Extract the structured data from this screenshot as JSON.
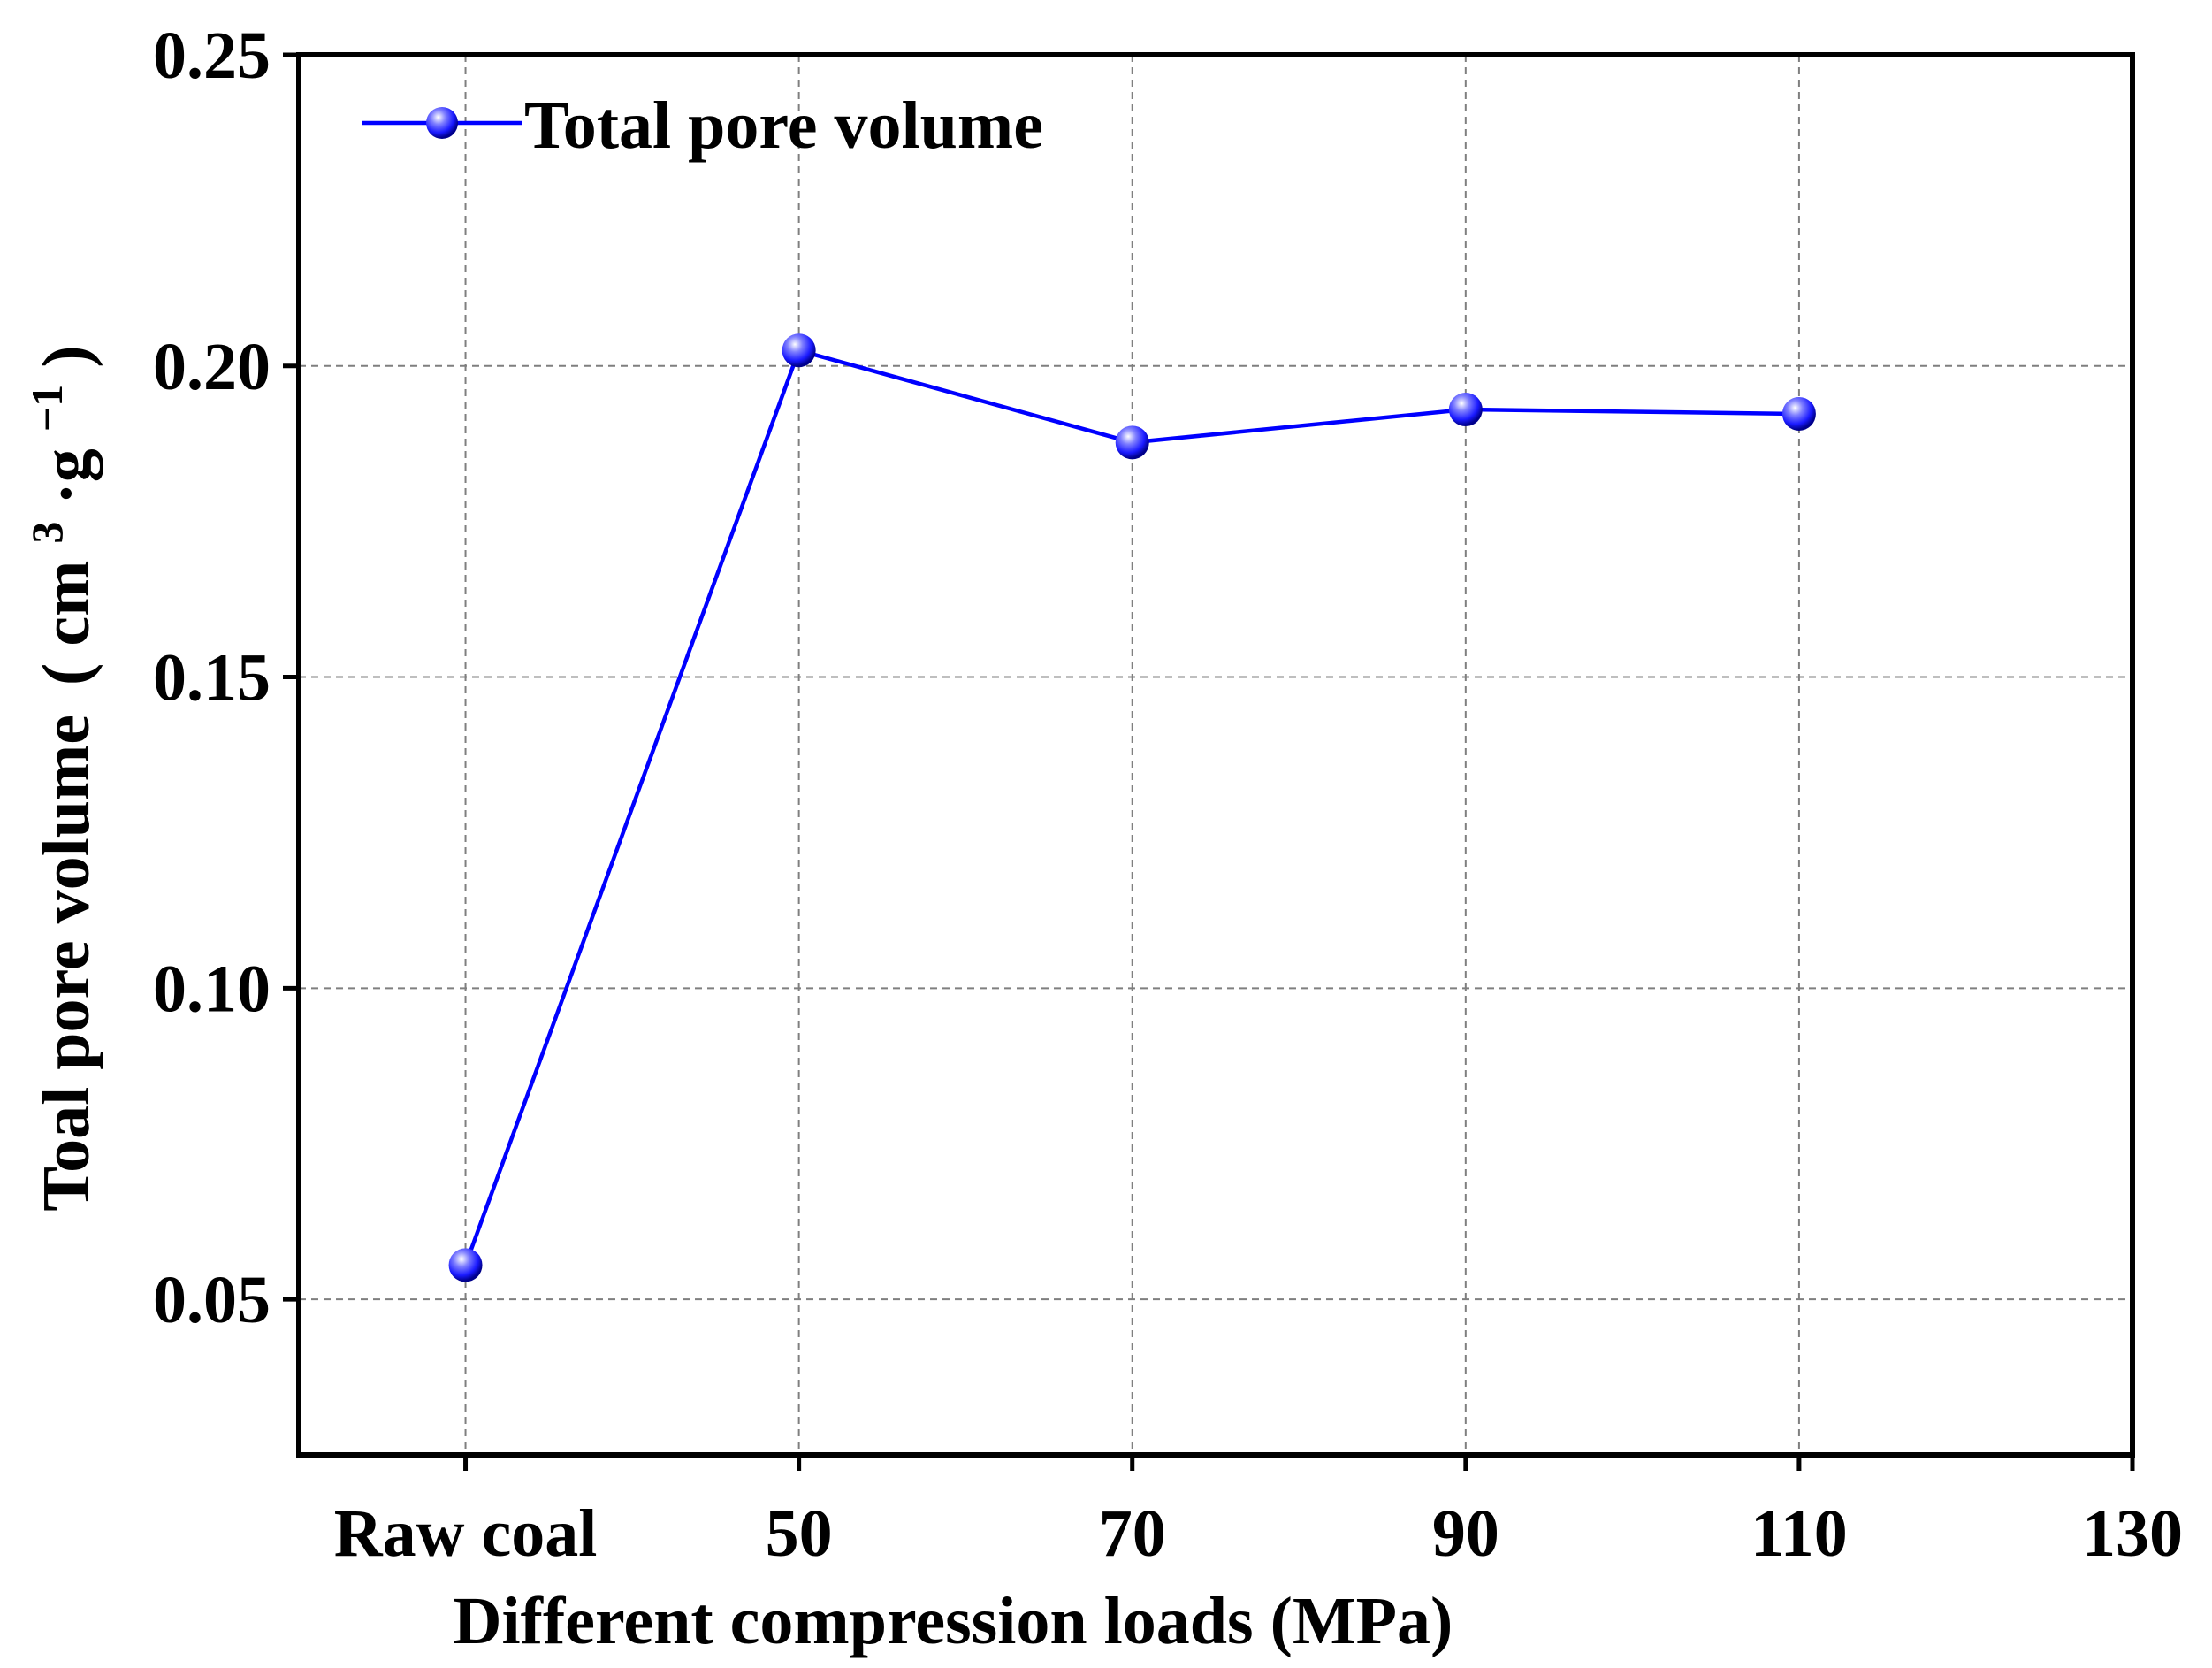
{
  "chart_data": {
    "type": "line",
    "title": "",
    "xlabel": "Different compression loads (MPa)",
    "ylabel_main": "Toal pore volume",
    "ylabel_unit": {
      "open": "(",
      "base1": "cm",
      "sup1": "3",
      "mid": "·g",
      "sup2": "−1",
      "close": ")"
    },
    "ylim": [
      0.025,
      0.25
    ],
    "yticks": [
      {
        "value": 0.05,
        "label": "0.05"
      },
      {
        "value": 0.1,
        "label": "0.10"
      },
      {
        "value": 0.15,
        "label": "0.15"
      },
      {
        "value": 0.2,
        "label": "0.20"
      },
      {
        "value": 0.25,
        "label": "0.25"
      }
    ],
    "xlim": [
      20,
      130
    ],
    "xticks": [
      {
        "value": 30,
        "label": "Raw coal"
      },
      {
        "value": 50,
        "label": "50"
      },
      {
        "value": 70,
        "label": "70"
      },
      {
        "value": 90,
        "label": "90"
      },
      {
        "value": 110,
        "label": "110"
      },
      {
        "value": 130,
        "label": "130"
      }
    ],
    "grid": true,
    "legend_position": "top-left",
    "series": [
      {
        "name": "Total pore volume",
        "color": "#0000ff",
        "x": [
          30,
          50,
          70,
          90,
          110
        ],
        "values": [
          0.0555,
          0.2025,
          0.1877,
          0.193,
          0.1923
        ]
      }
    ]
  }
}
